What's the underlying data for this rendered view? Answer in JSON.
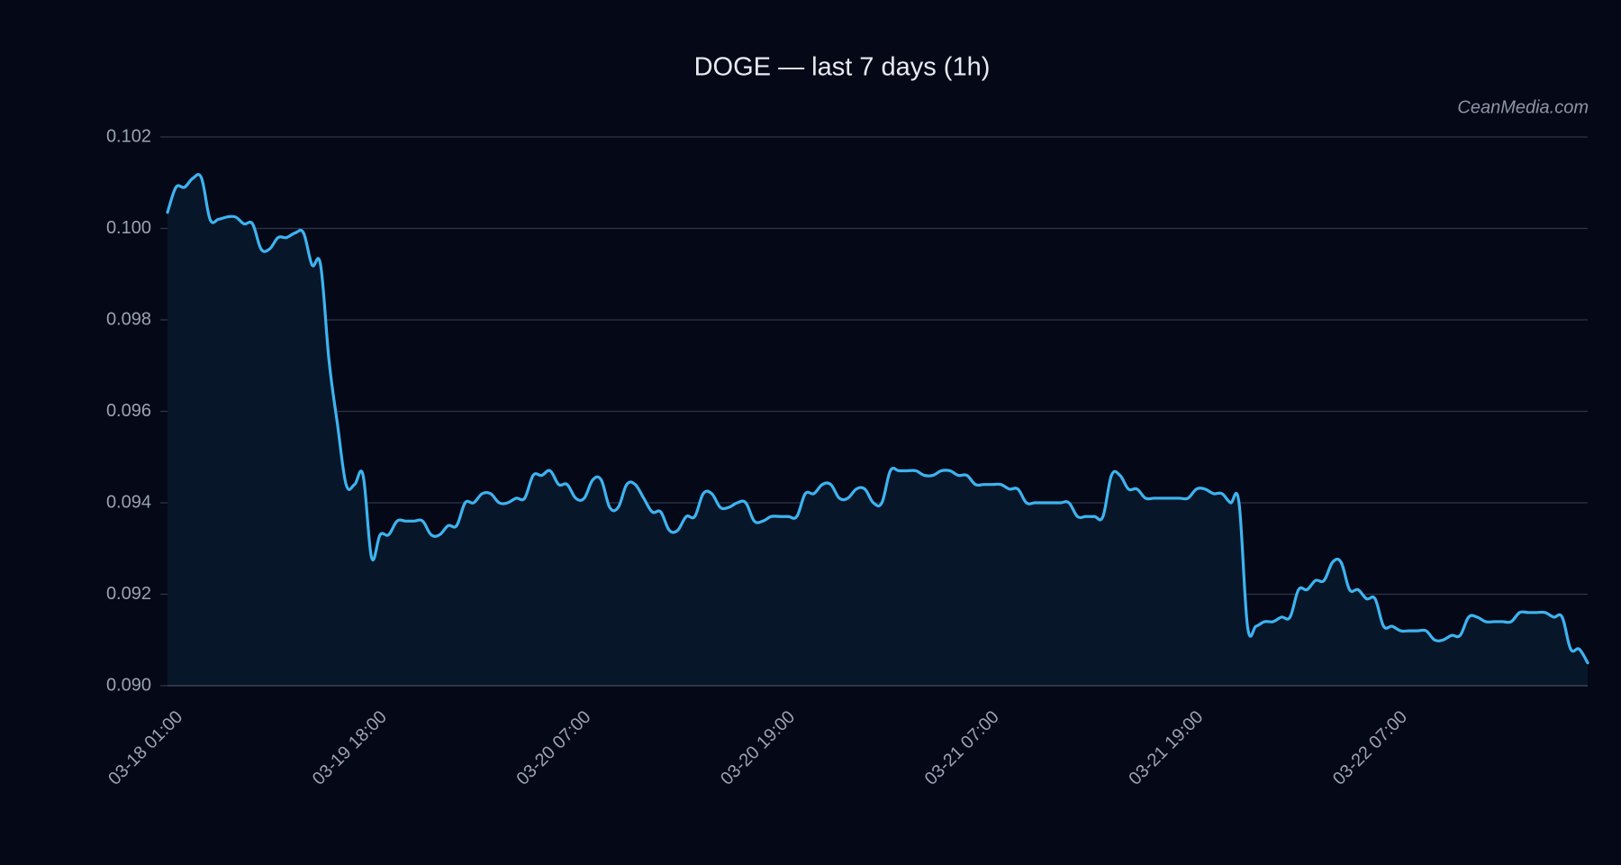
{
  "chart_data": {
    "type": "line",
    "title": "DOGE — last 7 days (1h)",
    "watermark": "CeanMedia.com",
    "categories": [
      "03-18 01:00",
      null,
      null,
      null,
      null,
      null,
      null,
      null,
      null,
      null,
      null,
      null,
      null,
      null,
      null,
      null,
      null,
      null,
      null,
      null,
      null,
      null,
      null,
      null,
      "03-19 18:00",
      null,
      null,
      null,
      null,
      null,
      null,
      null,
      null,
      null,
      null,
      null,
      null,
      null,
      null,
      null,
      null,
      null,
      null,
      null,
      null,
      null,
      null,
      null,
      "03-20 07:00",
      null,
      null,
      null,
      null,
      null,
      null,
      null,
      null,
      null,
      null,
      null,
      null,
      null,
      null,
      null,
      null,
      null,
      null,
      null,
      null,
      null,
      null,
      null,
      "03-20 19:00",
      null,
      null,
      null,
      null,
      null,
      null,
      null,
      null,
      null,
      null,
      null,
      null,
      null,
      null,
      null,
      null,
      null,
      null,
      null,
      null,
      null,
      null,
      null,
      "03-21 07:00",
      null,
      null,
      null,
      null,
      null,
      null,
      null,
      null,
      null,
      null,
      null,
      null,
      null,
      null,
      null,
      null,
      null,
      null,
      null,
      null,
      null,
      null,
      null,
      "03-21 19:00",
      null,
      null,
      null,
      null,
      null,
      null,
      null,
      null,
      null,
      null,
      null,
      null,
      null,
      null,
      null,
      null,
      null,
      null,
      null,
      null,
      null,
      null,
      null,
      "03-22 07:00",
      null,
      null,
      null,
      null,
      null,
      null,
      null,
      null,
      null,
      null,
      null,
      null,
      null,
      null,
      null,
      null,
      null,
      null,
      null,
      null,
      null,
      null,
      null
    ],
    "series": [
      {
        "color": "#3db4f0",
        "values": [
          0.10035,
          0.1009,
          0.1009,
          0.1011,
          0.1011,
          0.1002,
          0.1002,
          0.10025,
          0.10025,
          0.1001,
          0.1001,
          0.09955,
          0.09955,
          0.0998,
          0.0998,
          0.0999,
          0.0999,
          0.0992,
          0.0992,
          0.0971,
          0.0957,
          0.0944,
          0.0944,
          0.0946,
          0.0928,
          0.0933,
          0.0933,
          0.0936,
          0.0936,
          0.0936,
          0.0936,
          0.0933,
          0.0933,
          0.0935,
          0.0935,
          0.094,
          0.094,
          0.0942,
          0.0942,
          0.094,
          0.094,
          0.0941,
          0.0941,
          0.0946,
          0.0946,
          0.0947,
          0.0944,
          0.0944,
          0.0941,
          0.0941,
          0.0945,
          0.0945,
          0.0939,
          0.0939,
          0.0944,
          0.0944,
          0.0941,
          0.0938,
          0.0938,
          0.0934,
          0.0934,
          0.0937,
          0.0937,
          0.0942,
          0.0942,
          0.0939,
          0.0939,
          0.094,
          0.094,
          0.0936,
          0.0936,
          0.0937,
          0.0937,
          0.0937,
          0.0937,
          0.0942,
          0.0942,
          0.0944,
          0.0944,
          0.0941,
          0.0941,
          0.0943,
          0.0943,
          0.094,
          0.094,
          0.0947,
          0.0947,
          0.0947,
          0.0947,
          0.0946,
          0.0946,
          0.0947,
          0.0947,
          0.0946,
          0.0946,
          0.0944,
          0.0944,
          0.0944,
          0.0944,
          0.0943,
          0.0943,
          0.094,
          0.094,
          0.094,
          0.094,
          0.094,
          0.094,
          0.0937,
          0.0937,
          0.0937,
          0.0937,
          0.0946,
          0.0946,
          0.0943,
          0.0943,
          0.0941,
          0.0941,
          0.0941,
          0.0941,
          0.0941,
          0.0941,
          0.0943,
          0.0943,
          0.0942,
          0.0942,
          0.094,
          0.094,
          0.0913,
          0.0913,
          0.0914,
          0.0914,
          0.0915,
          0.0915,
          0.0921,
          0.0921,
          0.0923,
          0.0923,
          0.0927,
          0.0927,
          0.0921,
          0.0921,
          0.0919,
          0.0919,
          0.0913,
          0.0913,
          0.0912,
          0.0912,
          0.0912,
          0.0912,
          0.091,
          0.091,
          0.0911,
          0.0911,
          0.0915,
          0.0915,
          0.0914,
          0.0914,
          0.0914,
          0.0914,
          0.0916,
          0.0916,
          0.0916,
          0.0916,
          0.0915,
          0.0915,
          0.0908,
          0.0908,
          0.0905
        ]
      }
    ],
    "fill_color": "#071629",
    "grid": true,
    "ylim": [
      0.09,
      0.102
    ],
    "yticks": [
      {
        "value": 0.09,
        "label": "0.090"
      },
      0.092,
      0.094,
      0.096,
      0.098,
      {
        "value": 0.1,
        "label": "0.100"
      },
      0.102
    ]
  }
}
